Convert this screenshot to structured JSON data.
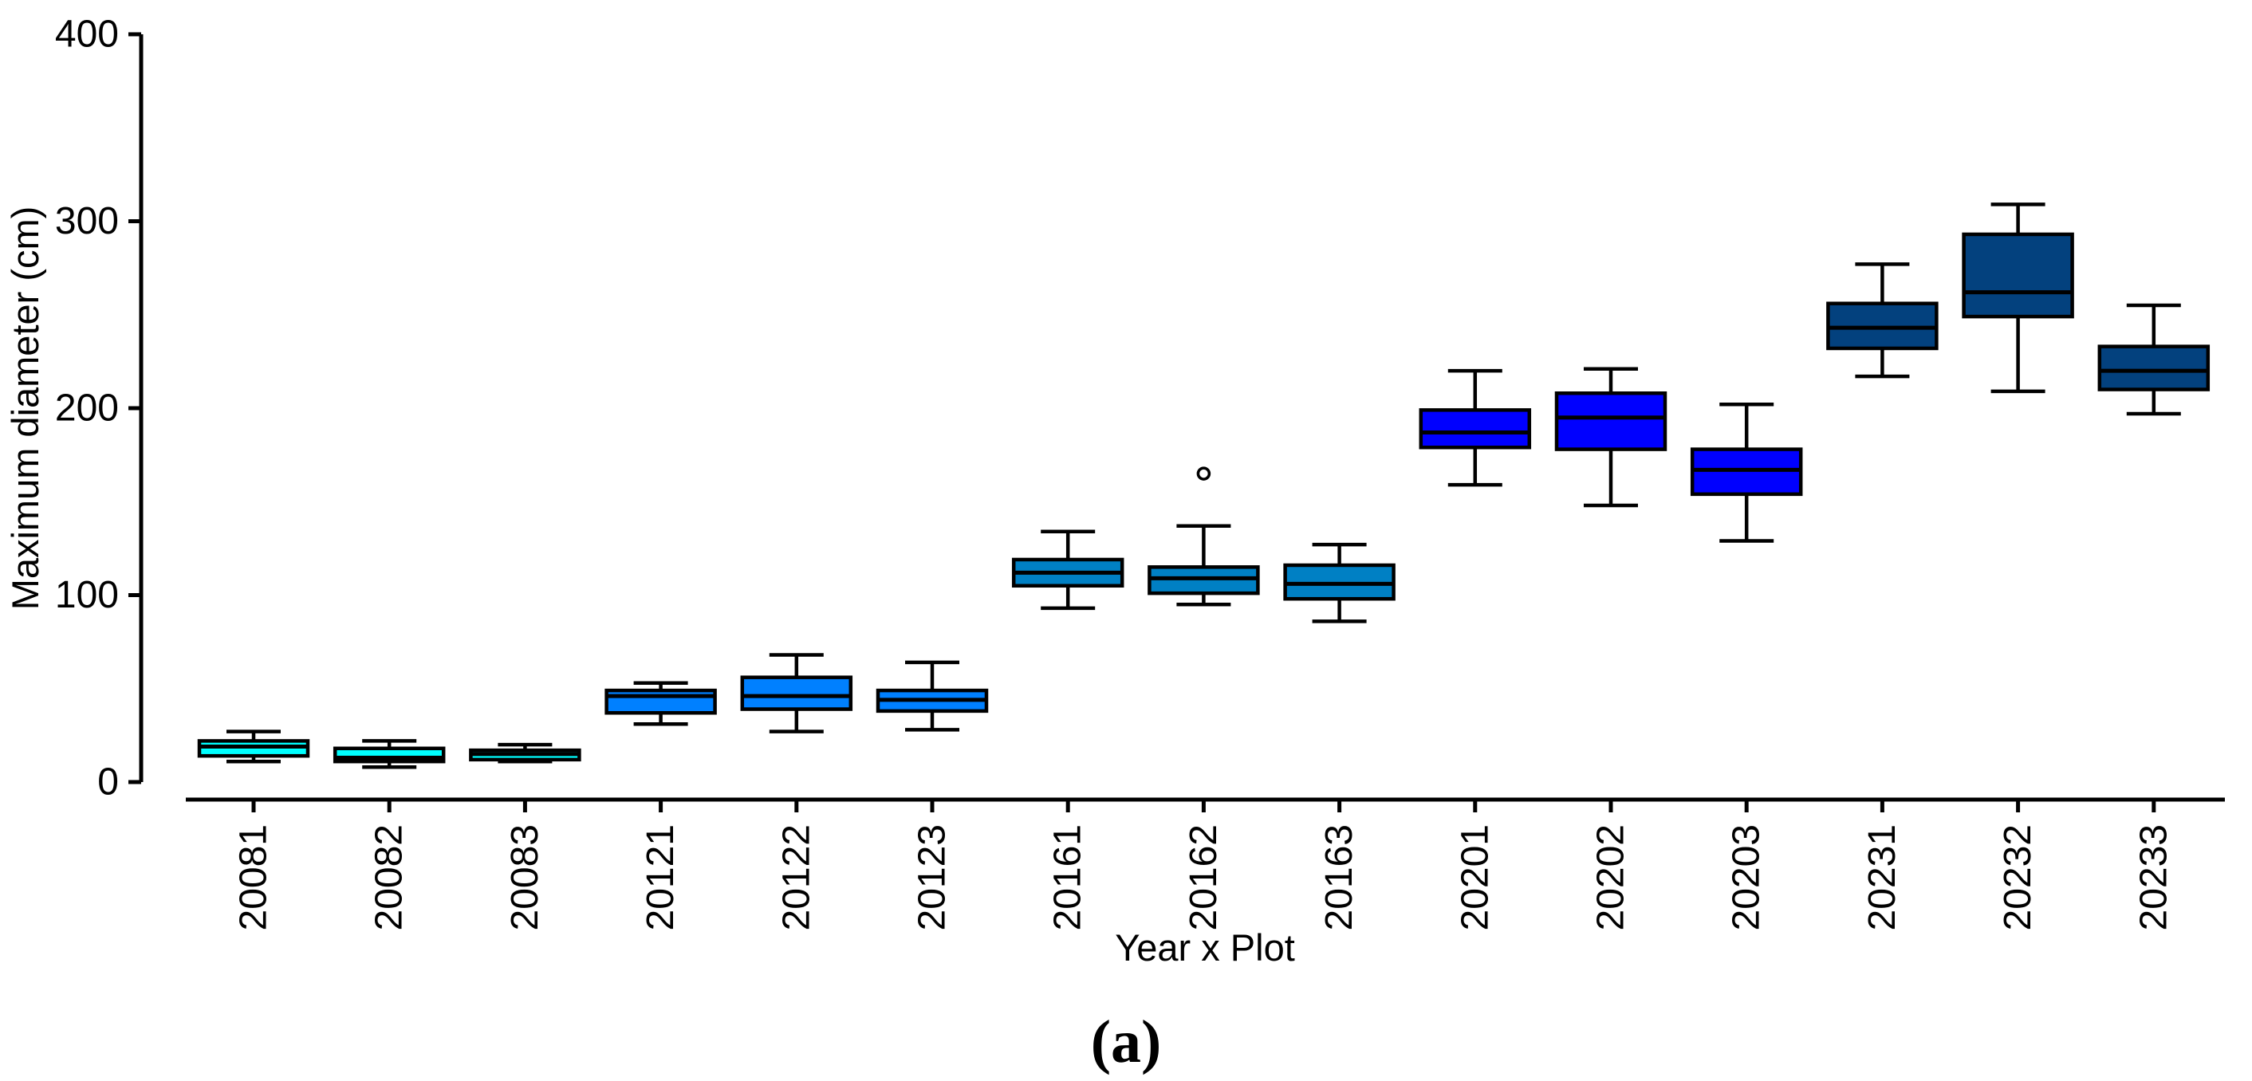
{
  "figure": {
    "caption": "(a)"
  },
  "chart_data": {
    "type": "box",
    "title": "",
    "xlabel": "Year x Plot",
    "ylabel": "Maximum diameter (cm)",
    "ylim": [
      0,
      400
    ],
    "yticks": [
      0,
      100,
      200,
      300,
      400
    ],
    "grid": false,
    "legend": "none",
    "categories": [
      "20081",
      "20082",
      "20083",
      "20121",
      "20122",
      "20123",
      "20161",
      "20162",
      "20163",
      "20201",
      "20202",
      "20203",
      "20231",
      "20232",
      "20233"
    ],
    "series": [
      {
        "label": "20081",
        "year_group": "2008",
        "color": "#00FFFF",
        "min": 11,
        "q1": 14,
        "median": 19,
        "q3": 22,
        "max": 27,
        "outliers": []
      },
      {
        "label": "20082",
        "year_group": "2008",
        "color": "#00FFFF",
        "min": 8,
        "q1": 11,
        "median": 13,
        "q3": 18,
        "max": 22,
        "outliers": []
      },
      {
        "label": "20083",
        "year_group": "2008",
        "color": "#00FFFF",
        "min": 11,
        "q1": 12,
        "median": 15,
        "q3": 17,
        "max": 20,
        "outliers": []
      },
      {
        "label": "20121",
        "year_group": "2012",
        "color": "#0080FF",
        "min": 31,
        "q1": 37,
        "median": 46,
        "q3": 49,
        "max": 53,
        "outliers": []
      },
      {
        "label": "20122",
        "year_group": "2012",
        "color": "#0080FF",
        "min": 27,
        "q1": 39,
        "median": 46,
        "q3": 56,
        "max": 68,
        "outliers": []
      },
      {
        "label": "20123",
        "year_group": "2012",
        "color": "#0080FF",
        "min": 28,
        "q1": 38,
        "median": 44,
        "q3": 49,
        "max": 64,
        "outliers": []
      },
      {
        "label": "20161",
        "year_group": "2016",
        "color": "#0080C4",
        "min": 93,
        "q1": 105,
        "median": 112,
        "q3": 119,
        "max": 134,
        "outliers": []
      },
      {
        "label": "20162",
        "year_group": "2016",
        "color": "#0080C4",
        "min": 95,
        "q1": 101,
        "median": 109,
        "q3": 115,
        "max": 137,
        "outliers": [
          165
        ]
      },
      {
        "label": "20163",
        "year_group": "2016",
        "color": "#0080C4",
        "min": 86,
        "q1": 98,
        "median": 106,
        "q3": 116,
        "max": 127,
        "outliers": []
      },
      {
        "label": "20201",
        "year_group": "2020",
        "color": "#0000FF",
        "min": 159,
        "q1": 179,
        "median": 187,
        "q3": 199,
        "max": 220,
        "outliers": []
      },
      {
        "label": "20202",
        "year_group": "2020",
        "color": "#0000FF",
        "min": 148,
        "q1": 178,
        "median": 195,
        "q3": 208,
        "max": 221,
        "outliers": []
      },
      {
        "label": "20203",
        "year_group": "2020",
        "color": "#0000FF",
        "min": 129,
        "q1": 154,
        "median": 167,
        "q3": 178,
        "max": 202,
        "outliers": []
      },
      {
        "label": "20231",
        "year_group": "2023",
        "color": "#03417E",
        "min": 217,
        "q1": 232,
        "median": 243,
        "q3": 256,
        "max": 277,
        "outliers": []
      },
      {
        "label": "20232",
        "year_group": "2023",
        "color": "#03417E",
        "min": 209,
        "q1": 249,
        "median": 262,
        "q3": 293,
        "max": 309,
        "outliers": []
      },
      {
        "label": "20233",
        "year_group": "2023",
        "color": "#03417E",
        "min": 197,
        "q1": 210,
        "median": 220,
        "q3": 233,
        "max": 255,
        "outliers": []
      }
    ],
    "axis_color": "#000000",
    "outlier_style": "open-circle"
  }
}
